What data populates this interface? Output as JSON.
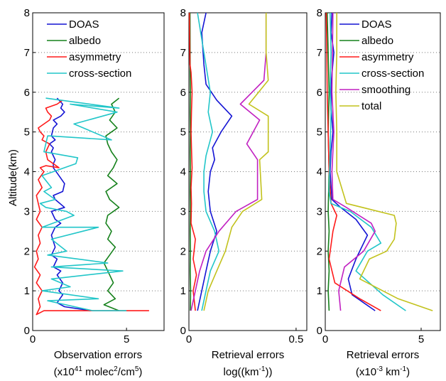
{
  "figure": {
    "ylabel": "Altitude(km)",
    "y_ticks": [
      "0",
      "1",
      "2",
      "3",
      "4",
      "5",
      "6",
      "7",
      "8"
    ]
  },
  "chart_data": [
    {
      "type": "line",
      "panel": "left",
      "xlabel_line1_pre": "Observation errors",
      "xlabel_line2_pre": "(x10",
      "xlabel_line2_sup1": "41",
      "xlabel_line2_mid": " molec",
      "xlabel_line2_sup2": "2",
      "xlabel_line2_post": "/cm",
      "xlabel_line2_sup3": "5",
      "xlabel_line2_end": ")",
      "xlim": [
        0,
        7
      ],
      "ylim": [
        0,
        8
      ],
      "x_ticks": [
        {
          "value": 0,
          "label": "0"
        },
        {
          "value": 5,
          "label": "5"
        }
      ],
      "grid": "y",
      "legend": "top-right",
      "series": [
        {
          "name": "DOAS",
          "color": "#1414d4",
          "x": [
            3.1,
            1.7,
            1.3,
            1.6,
            1.4,
            1.6,
            1.3,
            1.5,
            1.1,
            1.3,
            1.0,
            1.2,
            1.0,
            1.2,
            1.5,
            1.2,
            1.0,
            1.7,
            1.2,
            1.1,
            1.6,
            1.7,
            1.4,
            1.1,
            1.1,
            1.2,
            1.0,
            1.1,
            0.9,
            1.2,
            1.0,
            1.1,
            1.3,
            1.1,
            1.5,
            1.7,
            1.5,
            1.6,
            1.3
          ],
          "y": [
            0.5,
            0.6,
            0.7,
            0.9,
            1.0,
            1.2,
            1.4,
            1.5,
            1.6,
            1.8,
            1.9,
            2.1,
            2.4,
            2.6,
            2.7,
            2.8,
            3.0,
            3.1,
            3.3,
            3.4,
            3.5,
            3.7,
            3.9,
            4.1,
            4.2,
            4.3,
            4.5,
            4.6,
            4.7,
            4.8,
            4.9,
            5.1,
            5.2,
            5.3,
            5.4,
            5.5,
            5.6,
            5.7,
            5.85
          ]
        },
        {
          "name": "albedo",
          "color": "#15811b",
          "x": [
            4.6,
            3.8,
            4.4,
            4.0,
            4.3,
            4.1,
            3.8,
            4.1,
            4.4,
            4.0,
            4.2,
            3.9,
            4.0,
            4.6,
            4.1,
            3.9,
            4.5,
            4.0,
            4.3,
            4.5,
            4.2,
            4.0,
            3.9,
            4.5,
            4.1,
            4.4,
            4.2,
            4.6
          ],
          "y": [
            0.5,
            0.65,
            0.8,
            1.0,
            1.2,
            1.4,
            1.7,
            1.9,
            2.1,
            2.3,
            2.5,
            2.7,
            2.9,
            3.1,
            3.3,
            3.5,
            3.7,
            3.9,
            4.1,
            4.3,
            4.5,
            4.7,
            4.9,
            5.1,
            5.3,
            5.5,
            5.7,
            5.85
          ]
        },
        {
          "name": "asymmetry",
          "color": "#ff1a1a",
          "x": [
            6.2,
            0.6,
            0.2,
            0.4,
            0.3,
            0.5,
            0.2,
            0.4,
            0.1,
            0.3,
            0.2,
            0.4,
            0.3,
            0.5,
            0.2,
            0.4,
            0.3,
            0.2,
            0.5,
            0.3,
            0.6,
            0.4,
            0.7,
            1.4,
            0.8,
            0.7,
            0.9,
            0.5,
            0.6,
            0.4,
            0.3,
            0.6,
            0.9,
            1.0,
            0.8,
            0.7,
            1.3,
            1.6
          ],
          "y": [
            0.5,
            0.5,
            0.4,
            0.6,
            0.8,
            1.0,
            1.2,
            1.4,
            1.6,
            1.8,
            2.0,
            2.2,
            2.4,
            2.6,
            2.8,
            3.0,
            3.2,
            3.4,
            3.6,
            3.8,
            4.0,
            4.1,
            4.15,
            4.1,
            4.3,
            4.5,
            4.7,
            4.8,
            4.9,
            5.0,
            5.1,
            5.2,
            5.3,
            5.4,
            5.5,
            5.6,
            5.7,
            5.8
          ]
        },
        {
          "name": "cross-section",
          "color": "#22c6c9",
          "x": [
            5.0,
            3.2,
            0.8,
            3.5,
            0.5,
            2.0,
            1.0,
            4.8,
            1.0,
            4.0,
            0.8,
            1.8,
            1.0,
            3.5,
            0.5,
            2.2,
            1.8,
            0.7,
            0.4,
            1.2,
            0.6,
            1.0,
            0.5,
            2.3,
            2.4,
            0.6,
            0.8,
            0.9,
            4.2,
            2.2,
            4.5,
            2.0,
            4.6,
            0.7
          ],
          "y": [
            0.5,
            0.5,
            0.75,
            0.8,
            1.0,
            1.1,
            1.3,
            1.5,
            1.6,
            1.7,
            1.9,
            2.0,
            2.3,
            2.6,
            2.6,
            2.9,
            3.0,
            3.1,
            3.2,
            3.3,
            3.5,
            3.6,
            3.9,
            4.2,
            4.35,
            4.5,
            4.9,
            4.9,
            4.8,
            5.2,
            5.5,
            5.7,
            5.6,
            5.85
          ]
        }
      ]
    },
    {
      "type": "line",
      "panel": "middle",
      "xlabel_line1": "Retrieval errors",
      "xlabel_line2_pre": "log((km",
      "xlabel_line2_sup": "-1",
      "xlabel_line2_post": "))",
      "xlim": [
        0,
        0.55
      ],
      "ylim": [
        0,
        8
      ],
      "x_ticks": [
        {
          "value": 0,
          "label": "0"
        },
        {
          "value": 0.5,
          "label": "0.5"
        }
      ],
      "grid": "y",
      "legend": "none",
      "series": [
        {
          "name": "DOAS",
          "color": "#1414d4",
          "x": [
            0.04,
            0.06,
            0.08,
            0.1,
            0.13,
            0.1,
            0.09,
            0.1,
            0.12,
            0.11,
            0.15,
            0.2,
            0.13,
            0.08,
            0.07,
            0.06,
            0.08
          ],
          "y": [
            0.5,
            1.0,
            1.5,
            2.0,
            2.5,
            3.0,
            3.5,
            4.0,
            4.3,
            4.6,
            5.0,
            5.4,
            5.8,
            6.2,
            6.7,
            7.5,
            8.0
          ]
        },
        {
          "name": "albedo",
          "color": "#15811b",
          "x": [
            0.007,
            0.008,
            0.006,
            0.007,
            0.006,
            0.007,
            0.006,
            0.007,
            0.006,
            0.007,
            0.006,
            0.007,
            0.006,
            0.005
          ],
          "y": [
            0.5,
            1.0,
            1.5,
            2.0,
            2.5,
            3.0,
            3.5,
            4.0,
            4.5,
            5.0,
            5.5,
            6.0,
            6.5,
            8.0
          ]
        },
        {
          "name": "asymmetry",
          "color": "#ff1a1a",
          "x": [
            0.03,
            0.02,
            0.035,
            0.02,
            0.03,
            0.01,
            0.012,
            0.01,
            0.015,
            0.012,
            0.01,
            0.012,
            0.015,
            0.01,
            0.005,
            0.002
          ],
          "y": [
            0.5,
            1.0,
            1.4,
            1.8,
            2.3,
            2.7,
            3.2,
            3.6,
            4.1,
            4.6,
            5.0,
            5.5,
            6.0,
            6.5,
            6.7,
            8.0
          ]
        },
        {
          "name": "cross-section",
          "color": "#22c6c9",
          "x": [
            0.06,
            0.08,
            0.1,
            0.14,
            0.12,
            0.08,
            0.07,
            0.07,
            0.08,
            0.11,
            0.09,
            0.1,
            0.07,
            0.04
          ],
          "y": [
            0.5,
            1.0,
            1.5,
            2.0,
            2.5,
            3.0,
            3.5,
            4.0,
            4.4,
            5.0,
            5.5,
            6.0,
            7.0,
            8.0
          ]
        },
        {
          "name": "smoothing",
          "color": "#c120c1",
          "x": [
            0.01,
            0.03,
            0.05,
            0.08,
            0.14,
            0.22,
            0.32,
            0.32,
            0.27,
            0.33,
            0.24,
            0.35,
            0.36,
            0.36
          ],
          "y": [
            0.5,
            1.0,
            1.5,
            2.0,
            2.5,
            3.0,
            3.3,
            4.3,
            4.7,
            5.3,
            5.7,
            6.3,
            7.0,
            8.0
          ]
        },
        {
          "name": "total",
          "color": "#c2c21c",
          "x": [
            0.07,
            0.09,
            0.13,
            0.17,
            0.2,
            0.25,
            0.34,
            0.33,
            0.37,
            0.37,
            0.28,
            0.37,
            0.36,
            0.36
          ],
          "y": [
            0.5,
            1.0,
            1.5,
            2.0,
            2.6,
            3.0,
            3.3,
            4.3,
            4.5,
            5.4,
            5.7,
            6.3,
            7.0,
            8.0
          ]
        }
      ]
    },
    {
      "type": "line",
      "panel": "right",
      "xlabel_line1": "Retrieval errors",
      "xlabel_line2_pre": "(x10",
      "xlabel_line2_sup": "-3",
      "xlabel_line2_post": " km",
      "xlabel_line2_sup2": "-1",
      "xlabel_line2_end": ")",
      "xlim": [
        0,
        6
      ],
      "ylim": [
        0,
        8
      ],
      "x_ticks": [
        {
          "value": 0,
          "label": "0"
        },
        {
          "value": 5,
          "label": "5"
        }
      ],
      "grid": "y",
      "legend": "top-right",
      "series": [
        {
          "name": "DOAS",
          "color": "#1414d4",
          "x": [
            2.6,
            1.4,
            1.2,
            1.6,
            2.2,
            1.6,
            0.8,
            0.35,
            0.25,
            0.3,
            0.4,
            0.3,
            0.3,
            0.45,
            0.3,
            0.35
          ],
          "y": [
            0.5,
            0.9,
            1.3,
            1.8,
            2.4,
            2.8,
            3.1,
            3.3,
            4.0,
            4.5,
            5.0,
            5.6,
            6.2,
            7.0,
            7.5,
            8.0
          ]
        },
        {
          "name": "albedo",
          "color": "#15811b",
          "x": [
            0.2,
            0.15,
            0.2,
            0.15,
            0.2,
            0.15,
            0.2,
            0.15,
            0.2,
            0.15,
            0.1
          ],
          "y": [
            0.5,
            1.0,
            1.5,
            2.0,
            2.5,
            3.0,
            4.0,
            5.0,
            6.0,
            7.0,
            8.0
          ]
        },
        {
          "name": "asymmetry",
          "color": "#ff1a1a",
          "x": [
            2.9,
            1.8,
            0.5,
            0.2,
            0.4,
            0.6,
            0.3,
            0.2,
            0.15,
            0.1,
            0.08,
            0.05
          ],
          "y": [
            0.5,
            0.8,
            1.2,
            1.8,
            2.5,
            2.9,
            3.2,
            4.0,
            5.0,
            6.0,
            7.0,
            8.0
          ]
        },
        {
          "name": "cross-section",
          "color": "#22c6c9",
          "x": [
            4.2,
            3.0,
            1.6,
            2.2,
            2.9,
            2.4,
            1.3,
            0.3,
            0.2,
            0.25,
            0.3,
            0.25,
            0.3,
            0.25
          ],
          "y": [
            0.5,
            0.9,
            1.5,
            2.0,
            2.2,
            2.6,
            3.0,
            3.2,
            3.5,
            4.5,
            5.5,
            6.0,
            7.0,
            8.0
          ]
        },
        {
          "name": "smoothing",
          "color": "#c120c1",
          "x": [
            0.8,
            0.7,
            1.0,
            2.0,
            2.6,
            2.4,
            1.1,
            0.4,
            0.35,
            0.45,
            0.35,
            0.4
          ],
          "y": [
            0.5,
            1.0,
            1.6,
            2.0,
            2.5,
            2.7,
            3.1,
            3.3,
            4.0,
            5.0,
            6.0,
            8.0
          ]
        },
        {
          "name": "total",
          "color": "#c2c21c",
          "x": [
            5.6,
            3.8,
            1.8,
            2.3,
            3.2,
            3.6,
            3.7,
            3.6,
            1.1,
            0.6,
            0.6,
            0.55,
            0.6,
            0.6
          ],
          "y": [
            0.5,
            0.8,
            1.3,
            1.8,
            2.0,
            2.3,
            2.7,
            2.9,
            3.2,
            4.0,
            5.0,
            6.0,
            7.0,
            8.0
          ]
        }
      ]
    }
  ]
}
